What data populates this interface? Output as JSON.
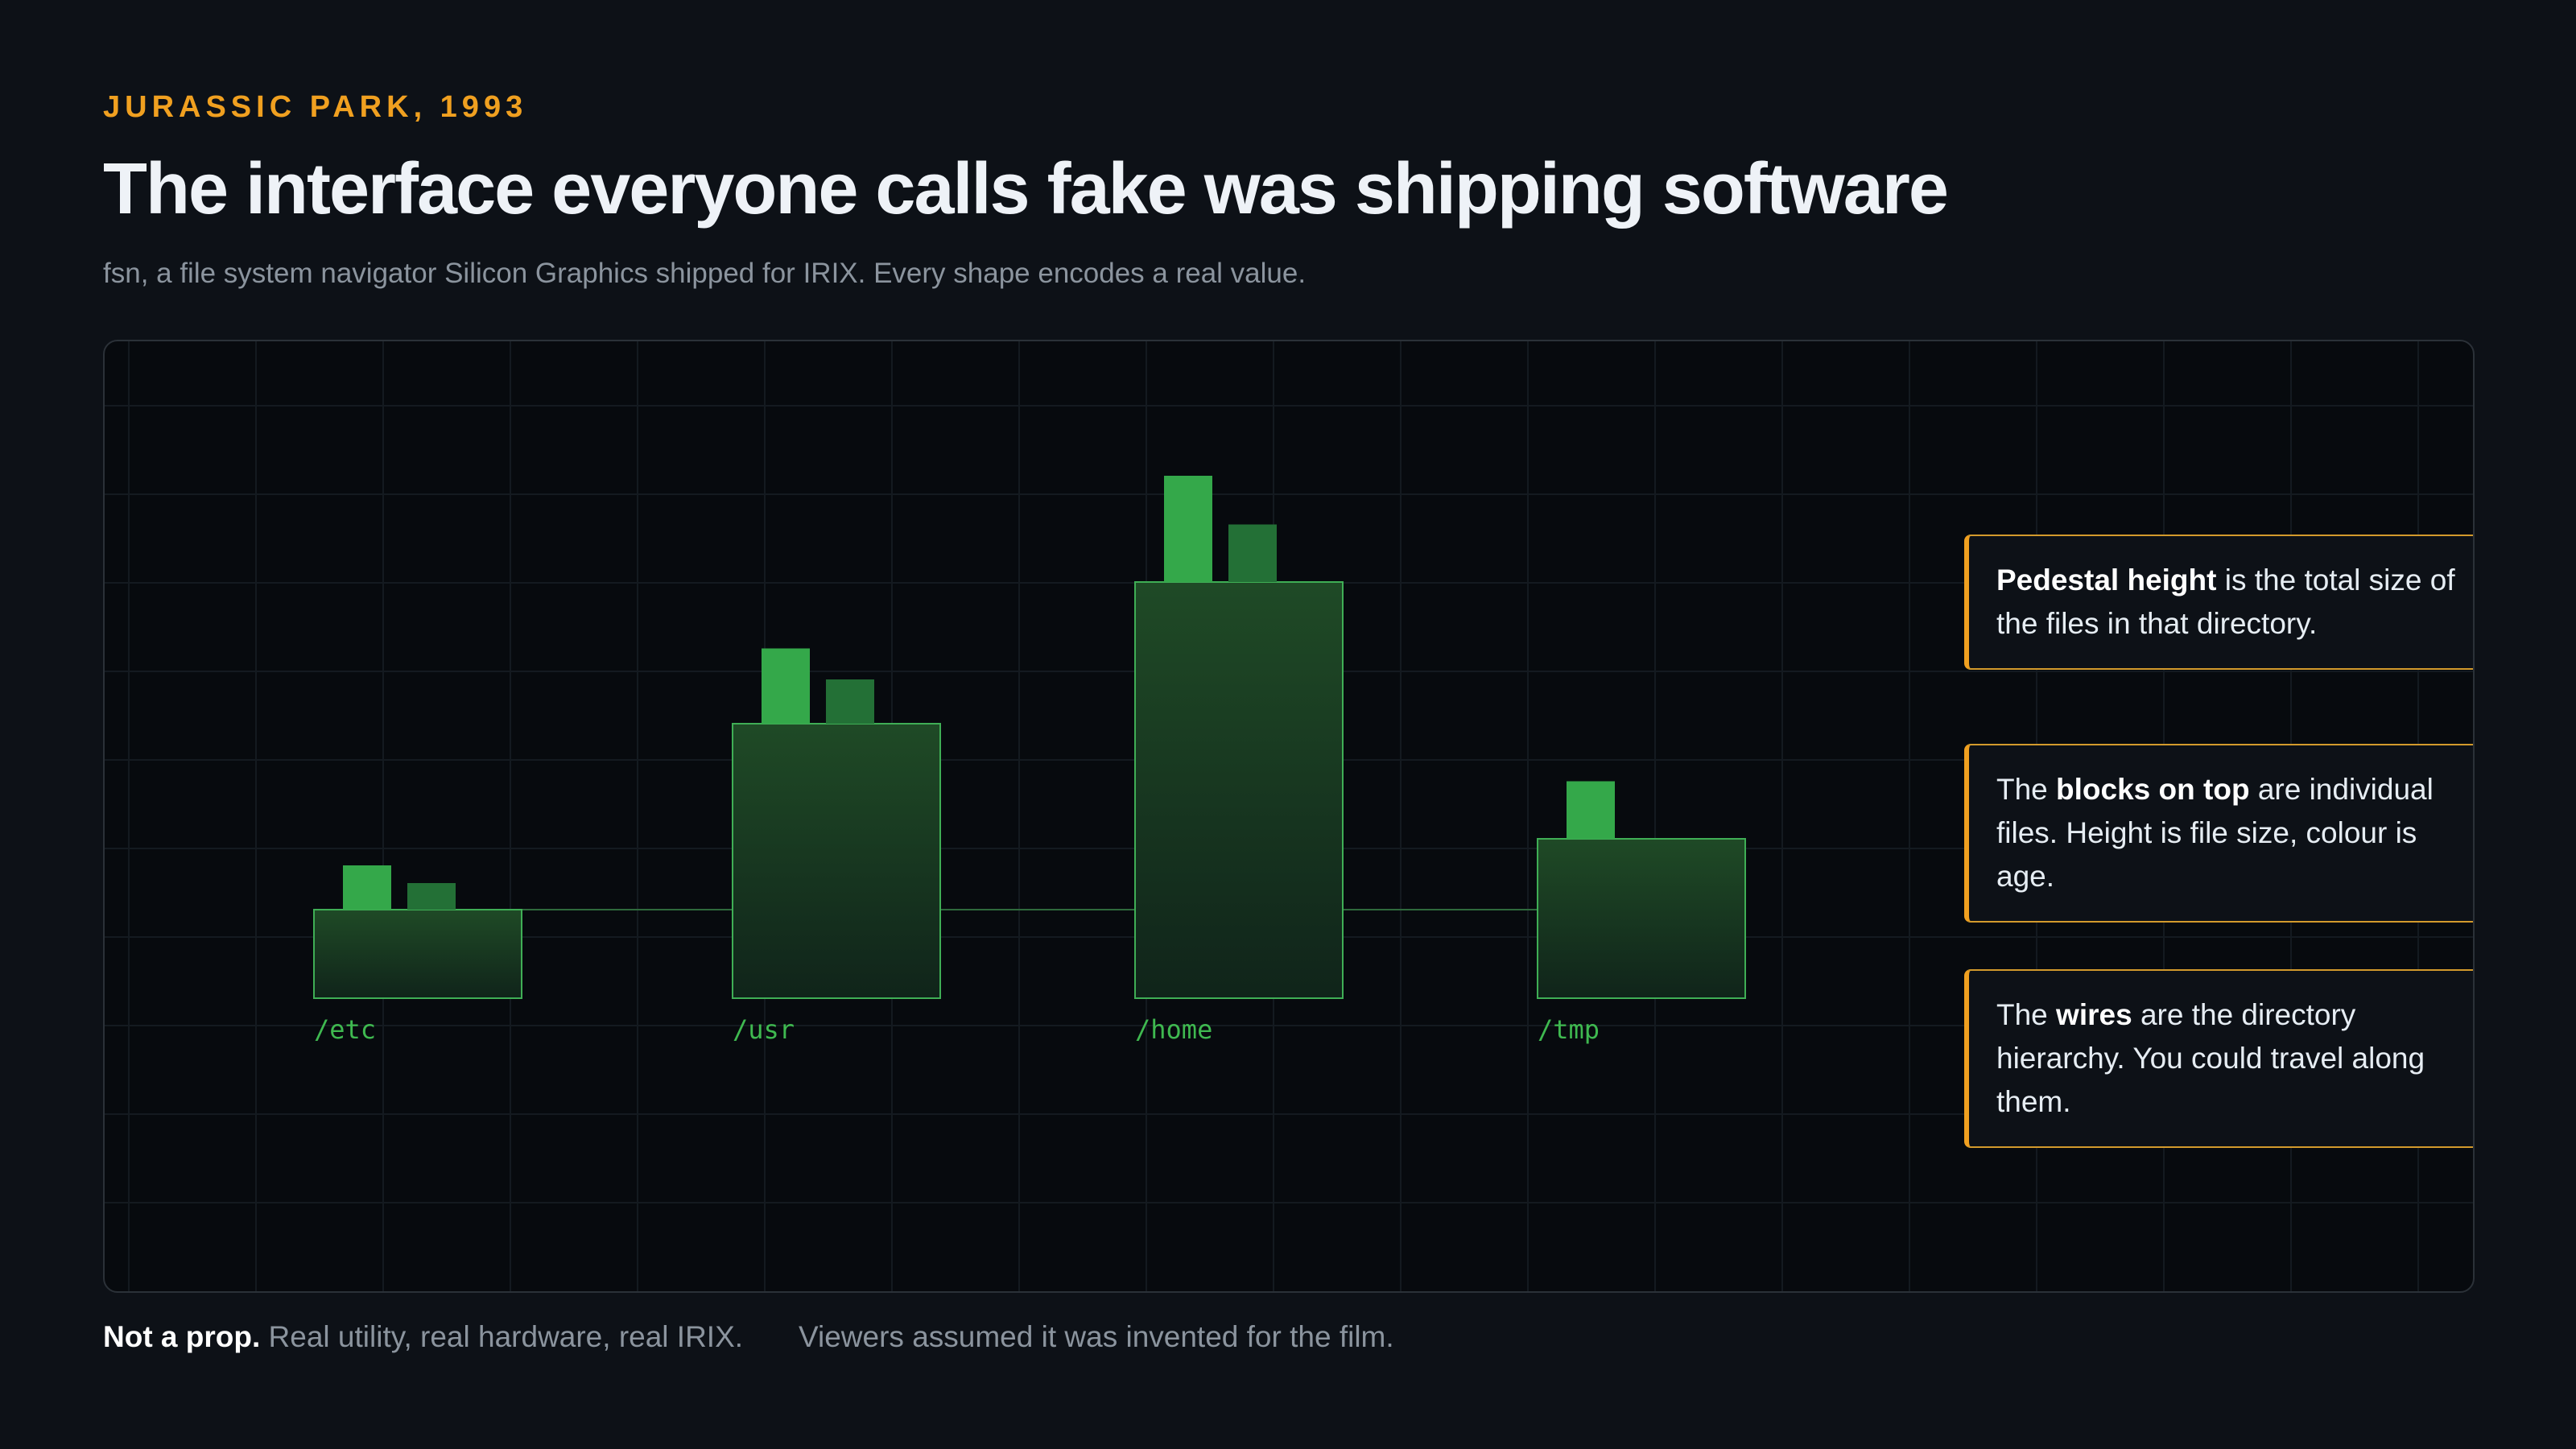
{
  "header": {
    "eyebrow": "JURASSIC PARK, 1993",
    "title": "The interface everyone calls fake was shipping software",
    "subtitle": "fsn, a file system navigator Silicon Graphics shipped for IRIX. Every shape encodes a real value."
  },
  "colors": {
    "accent": "#f0a020",
    "file_block_bright": "#34a84a",
    "file_block_dim": "#237036",
    "pedestal_fill_top": "#1f4a26",
    "pedestal_fill_bottom": "#11261a",
    "pedestal_stroke": "#3fae55",
    "wire": "#2f6a3c",
    "label_text": "#3fb950"
  },
  "diagram": {
    "directories": [
      {
        "name": "/etc",
        "pedestal_size": 1.0,
        "files": [
          {
            "size": 0.5,
            "age": "new"
          },
          {
            "size": 0.3,
            "age": "old"
          }
        ]
      },
      {
        "name": "/usr",
        "pedestal_size": 3.1,
        "files": [
          {
            "size": 0.85,
            "age": "new"
          },
          {
            "size": 0.5,
            "age": "old"
          }
        ]
      },
      {
        "name": "/home",
        "pedestal_size": 4.7,
        "files": [
          {
            "size": 1.2,
            "age": "new"
          },
          {
            "size": 0.65,
            "age": "old"
          }
        ]
      },
      {
        "name": "/tmp",
        "pedestal_size": 1.8,
        "files": [
          {
            "size": 0.65,
            "age": "new"
          }
        ]
      }
    ]
  },
  "callouts": [
    {
      "bold": "Pedestal height",
      "before": "",
      "after": " is the total size of the files in that directory."
    },
    {
      "bold": "blocks on top",
      "before": "The ",
      "after": " are individual files. Height is file size, colour is age."
    },
    {
      "bold": "wires",
      "before": "The ",
      "after": " are the directory hierarchy. You could travel along them."
    }
  ],
  "footer": {
    "bold": "Not a prop.",
    "text": " Real utility, real hardware, real IRIX.",
    "note": "Viewers assumed it was invented for the film."
  }
}
